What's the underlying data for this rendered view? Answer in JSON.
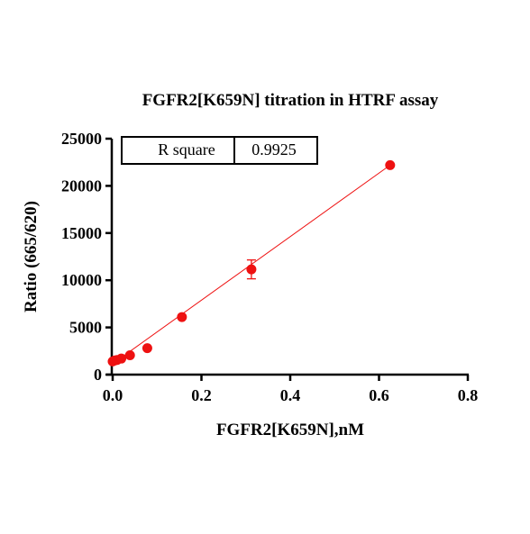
{
  "chart_data": {
    "type": "scatter",
    "title": "FGFR2[K659N] titration in HTRF assay",
    "xlabel": "FGFR2[K659N],nM",
    "ylabel": "Ratio (665/620)",
    "xlim": [
      0,
      0.8
    ],
    "ylim": [
      0,
      25000
    ],
    "x_ticks": [
      0.0,
      0.2,
      0.4,
      0.6,
      0.8
    ],
    "x_tick_labels": [
      "0.0",
      "0.2",
      "0.4",
      "0.6",
      "0.8"
    ],
    "y_ticks": [
      0,
      5000,
      10000,
      15000,
      20000,
      25000
    ],
    "y_tick_labels": [
      "0",
      "5000",
      "10000",
      "15000",
      "20000",
      "25000"
    ],
    "grid": false,
    "series": [
      {
        "color": "#ee1111",
        "points": [
          {
            "x": 0.0,
            "y": 1400
          },
          {
            "x": 0.0049,
            "y": 1500
          },
          {
            "x": 0.0098,
            "y": 1550
          },
          {
            "x": 0.0195,
            "y": 1700
          },
          {
            "x": 0.039,
            "y": 2050
          },
          {
            "x": 0.078,
            "y": 2800
          },
          {
            "x": 0.156,
            "y": 6100
          },
          {
            "x": 0.3125,
            "y": 11150,
            "err": 1000
          },
          {
            "x": 0.625,
            "y": 22200
          }
        ],
        "fit_line": {
          "x": [
            0.0,
            0.625
          ],
          "y": [
            1150,
            22200
          ]
        }
      }
    ],
    "annotation_table": {
      "label": "R square",
      "value": "0.9925"
    }
  }
}
